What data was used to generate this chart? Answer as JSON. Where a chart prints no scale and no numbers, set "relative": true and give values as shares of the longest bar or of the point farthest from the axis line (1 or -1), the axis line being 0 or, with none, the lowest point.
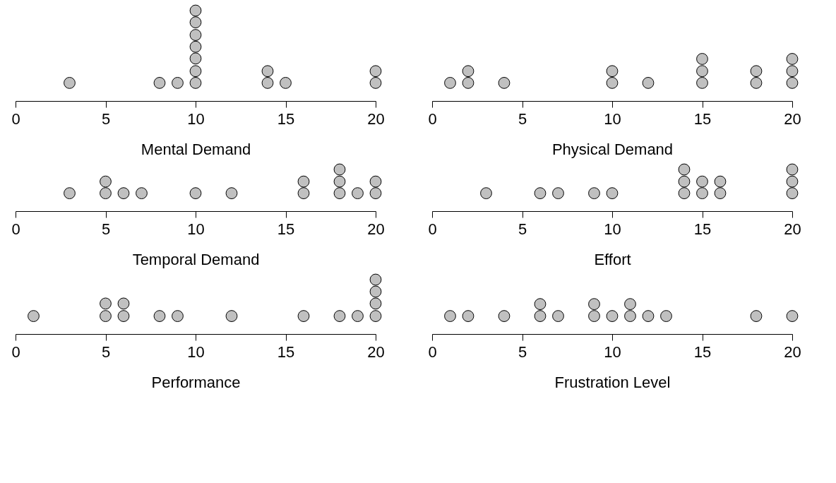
{
  "chart_data": [
    {
      "type": "scatter",
      "xlabel": "Mental Demand",
      "relative": true,
      "x": [
        3,
        8,
        9,
        10,
        10,
        10,
        10,
        10,
        10,
        10,
        14,
        14,
        15,
        20,
        20
      ],
      "values": [
        0.2,
        0.2,
        0.2,
        0.2,
        0.33,
        0.47,
        0.6,
        0.73,
        0.87,
        1,
        0.2,
        0.33,
        0.2,
        0.2,
        0.33
      ],
      "color": "#c0c0c0",
      "marker": "circle",
      "xlim": [
        0,
        20
      ],
      "xticks": [
        0,
        5,
        10,
        15,
        20
      ],
      "tick_labels": "x"
    },
    {
      "type": "scatter",
      "xlabel": "Physical Demand",
      "relative": true,
      "x": [
        1,
        2,
        2,
        4,
        10,
        10,
        12,
        15,
        15,
        15,
        18,
        18,
        20,
        20,
        20
      ],
      "values": [
        0.43,
        0.43,
        0.71,
        0.43,
        0.43,
        0.71,
        0.43,
        0.43,
        0.71,
        1,
        0.43,
        0.71,
        0.43,
        0.71,
        1
      ],
      "color": "#c0c0c0",
      "marker": "circle",
      "xlim": [
        0,
        20
      ],
      "xticks": [
        0,
        5,
        10,
        15,
        20
      ],
      "tick_labels": "x"
    },
    {
      "type": "scatter",
      "xlabel": "Temporal Demand",
      "relative": true,
      "x": [
        3,
        5,
        5,
        6,
        7,
        10,
        12,
        16,
        16,
        18,
        18,
        18,
        19,
        20,
        20
      ],
      "values": [
        0.43,
        0.43,
        0.71,
        0.43,
        0.43,
        0.43,
        0.43,
        0.43,
        0.71,
        0.43,
        0.71,
        1,
        0.43,
        0.43,
        0.71
      ],
      "color": "#c0c0c0",
      "marker": "circle",
      "xlim": [
        0,
        20
      ],
      "xticks": [
        0,
        5,
        10,
        15,
        20
      ],
      "tick_labels": "x"
    },
    {
      "type": "scatter",
      "xlabel": "Effort",
      "relative": true,
      "x": [
        3,
        6,
        7,
        9,
        10,
        14,
        14,
        14,
        15,
        15,
        16,
        16,
        20,
        20,
        20
      ],
      "values": [
        0.43,
        0.43,
        0.43,
        0.43,
        0.43,
        0.43,
        0.71,
        1,
        0.43,
        0.71,
        0.43,
        0.71,
        0.43,
        0.71,
        1
      ],
      "color": "#c0c0c0",
      "marker": "circle",
      "xlim": [
        0,
        20
      ],
      "xticks": [
        0,
        5,
        10,
        15,
        20
      ],
      "tick_labels": "x"
    },
    {
      "type": "scatter",
      "xlabel": "Performance",
      "relative": true,
      "x": [
        1,
        5,
        5,
        6,
        6,
        8,
        9,
        12,
        16,
        18,
        19,
        20,
        20,
        20,
        20
      ],
      "values": [
        0.33,
        0.33,
        0.56,
        0.33,
        0.56,
        0.33,
        0.33,
        0.33,
        0.33,
        0.33,
        0.33,
        0.33,
        0.56,
        0.78,
        1
      ],
      "color": "#c0c0c0",
      "marker": "circle",
      "xlim": [
        0,
        20
      ],
      "xticks": [
        0,
        5,
        10,
        15,
        20
      ],
      "tick_labels": "x"
    },
    {
      "type": "scatter",
      "xlabel": "Frustration Level",
      "relative": true,
      "x": [
        1,
        2,
        4,
        6,
        6,
        7,
        9,
        9,
        10,
        11,
        11,
        12,
        13,
        18,
        20
      ],
      "values": [
        0.6,
        0.6,
        0.6,
        0.6,
        1,
        0.6,
        0.6,
        1,
        0.6,
        0.6,
        1,
        0.6,
        0.6,
        0.6,
        0.6
      ],
      "color": "#c0c0c0",
      "marker": "circle",
      "xlim": [
        0,
        20
      ],
      "xticks": [
        0,
        5,
        10,
        15,
        20
      ],
      "tick_labels": "x"
    }
  ]
}
